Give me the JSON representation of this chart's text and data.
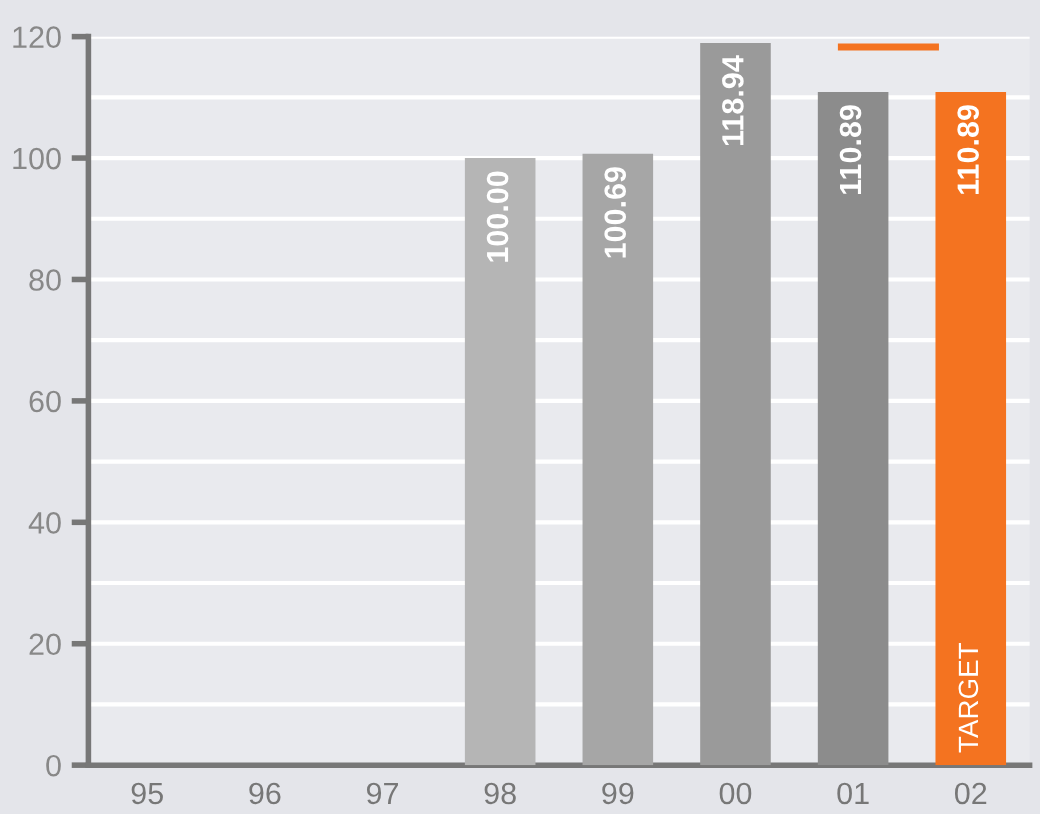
{
  "chart_data": {
    "type": "bar",
    "categories": [
      "95",
      "96",
      "97",
      "98",
      "99",
      "00",
      "01",
      "02"
    ],
    "values": [
      null,
      null,
      null,
      100.0,
      100.69,
      118.94,
      110.89,
      110.89
    ],
    "colors": [
      "#b5b5b5",
      "#b5b5b5",
      "#b5b5b5",
      "#b5b5b5",
      "#a6a6a6",
      "#9a9a9a",
      "#8c8c8c",
      "#f47320"
    ],
    "value_labels": [
      null,
      null,
      null,
      "100.00",
      "100.69",
      "118.94",
      "110.89",
      "110.89"
    ],
    "ylim": [
      0,
      120
    ],
    "yticks": [
      0,
      {
        "value": 10,
        "label": null
      },
      20,
      {
        "value": 30,
        "label": null
      },
      40,
      {
        "value": 50,
        "label": null
      },
      60,
      {
        "value": 70,
        "label": null
      },
      80,
      {
        "value": 90,
        "label": null
      },
      100,
      {
        "value": 110,
        "label": null
      },
      120
    ],
    "grid": "y",
    "ref_lines": [
      {
        "axis": "y",
        "value": 118.3,
        "color": "#f47320"
      }
    ],
    "annotations": [
      "TARGET"
    ]
  }
}
